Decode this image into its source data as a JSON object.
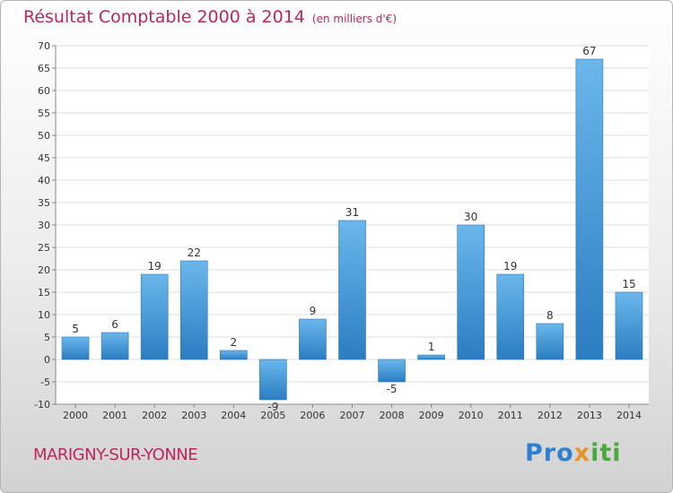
{
  "title": "Résultat Comptable 2000 à 2014",
  "subtitle": "(en milliers d'€)",
  "commune": "MARIGNY-SUR-YONNE",
  "logo": {
    "p1": "Pro",
    "p2": "x",
    "p3": "iti"
  },
  "colors": {
    "bar_light": "#6bb7ec",
    "bar_dark": "#2b7dc1",
    "title": "#c0245c",
    "grid": "#dddddd"
  },
  "chart_data": {
    "type": "bar",
    "title": "Résultat Comptable 2000 à 2014",
    "subtitle": "(en milliers d'€)",
    "xlabel": "",
    "ylabel": "",
    "categories": [
      "2000",
      "2001",
      "2002",
      "2003",
      "2004",
      "2005",
      "2006",
      "2007",
      "2008",
      "2009",
      "2010",
      "2011",
      "2012",
      "2013",
      "2014"
    ],
    "values": [
      5,
      6,
      19,
      22,
      2,
      -9,
      9,
      31,
      -5,
      1,
      30,
      19,
      8,
      67,
      15
    ],
    "labels": [
      "5",
      "6",
      "19",
      "22",
      "2",
      "-9",
      "9",
      "31",
      "-5",
      "1",
      "30",
      "19",
      "8",
      "67",
      "15"
    ],
    "ylim": [
      -10,
      70
    ],
    "yticks": [
      -10,
      -5,
      0,
      5,
      10,
      15,
      20,
      25,
      30,
      35,
      40,
      45,
      50,
      55,
      60,
      65,
      70
    ],
    "grid": true
  }
}
